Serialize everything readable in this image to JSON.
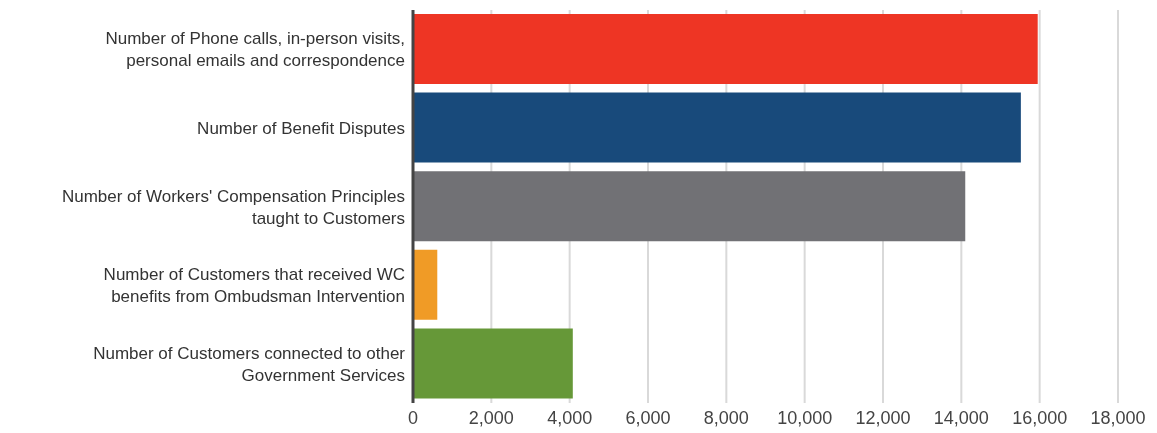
{
  "chart_data": {
    "type": "bar",
    "orientation": "horizontal",
    "categories": [
      "Number of Phone calls, in-person visits, personal emails and correspondence",
      "Number of Benefit Disputes",
      "Number of Workers' Compensation Principles taught to Customers",
      "Number of Customers that received WC benefits from Ombudsman Intervention",
      "Number of Customers connected to other Government Services"
    ],
    "values": [
      15950,
      15520,
      14100,
      620,
      4080
    ],
    "colors": [
      "#ee3524",
      "#184a7b",
      "#717175",
      "#f09b26",
      "#669838"
    ],
    "xlim": [
      0,
      18000
    ],
    "xticks": [
      {
        "value": 0,
        "label": "0"
      },
      {
        "value": 2000,
        "label": "2,000"
      },
      {
        "value": 4000,
        "label": "4,000"
      },
      {
        "value": 6000,
        "label": "6,000"
      },
      {
        "value": 8000,
        "label": "8,000"
      },
      {
        "value": 10000,
        "label": "10,000"
      },
      {
        "value": 12000,
        "label": "12,000"
      },
      {
        "value": 14000,
        "label": "14,000"
      },
      {
        "value": 16000,
        "label": "16,000"
      },
      {
        "value": 18000,
        "label": "18,000"
      }
    ],
    "grid": "x"
  }
}
